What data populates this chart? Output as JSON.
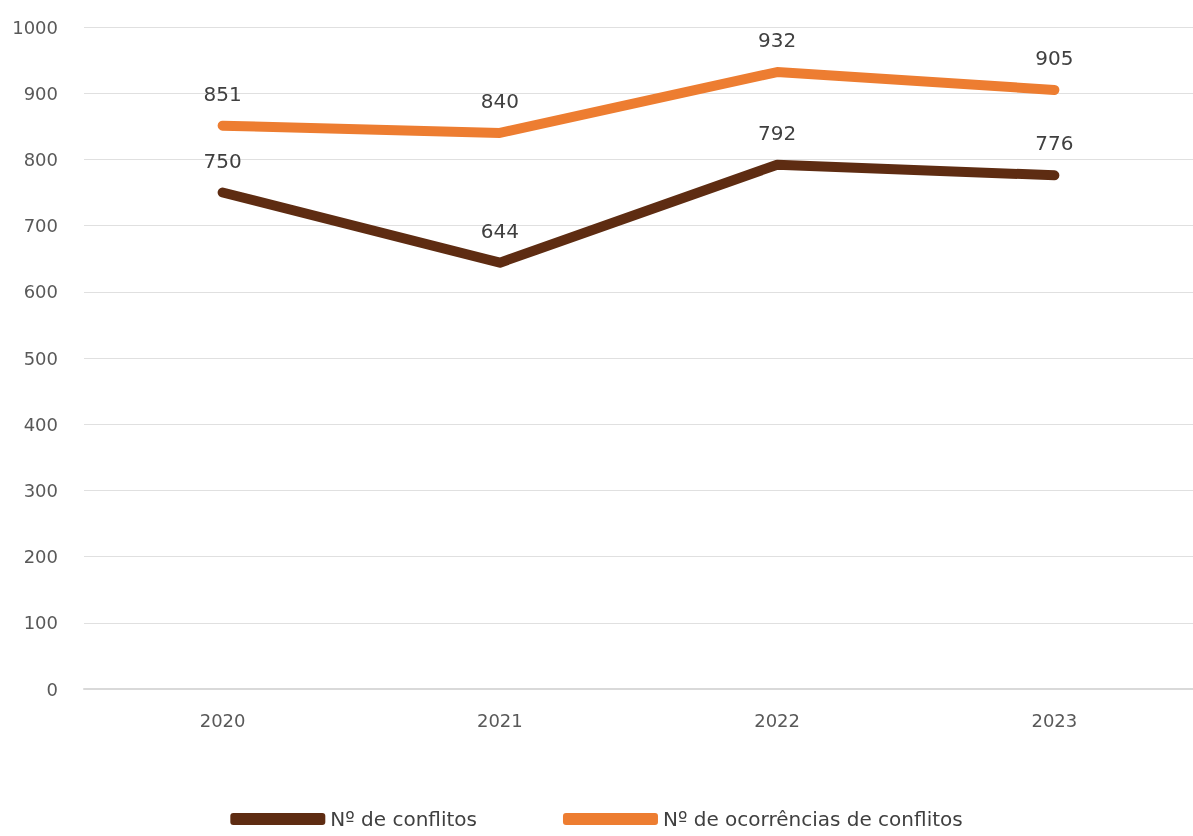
{
  "chart_data": {
    "type": "line",
    "categories": [
      "2020",
      "2021",
      "2022",
      "2023"
    ],
    "series": [
      {
        "name": "Nº de conflitos",
        "color": "#5e2c12",
        "values": [
          750,
          644,
          792,
          776
        ]
      },
      {
        "name": "Nº de ocorrências de conflitos",
        "color": "#ed7d31",
        "values": [
          851,
          840,
          932,
          905
        ]
      }
    ],
    "ylim": [
      0,
      1000
    ],
    "yticks": [
      0,
      100,
      200,
      300,
      400,
      500,
      600,
      700,
      800,
      900,
      1000
    ],
    "grid": "y",
    "legend": "bottom",
    "marker": "none",
    "line_style": "solid",
    "data_labels": true
  }
}
